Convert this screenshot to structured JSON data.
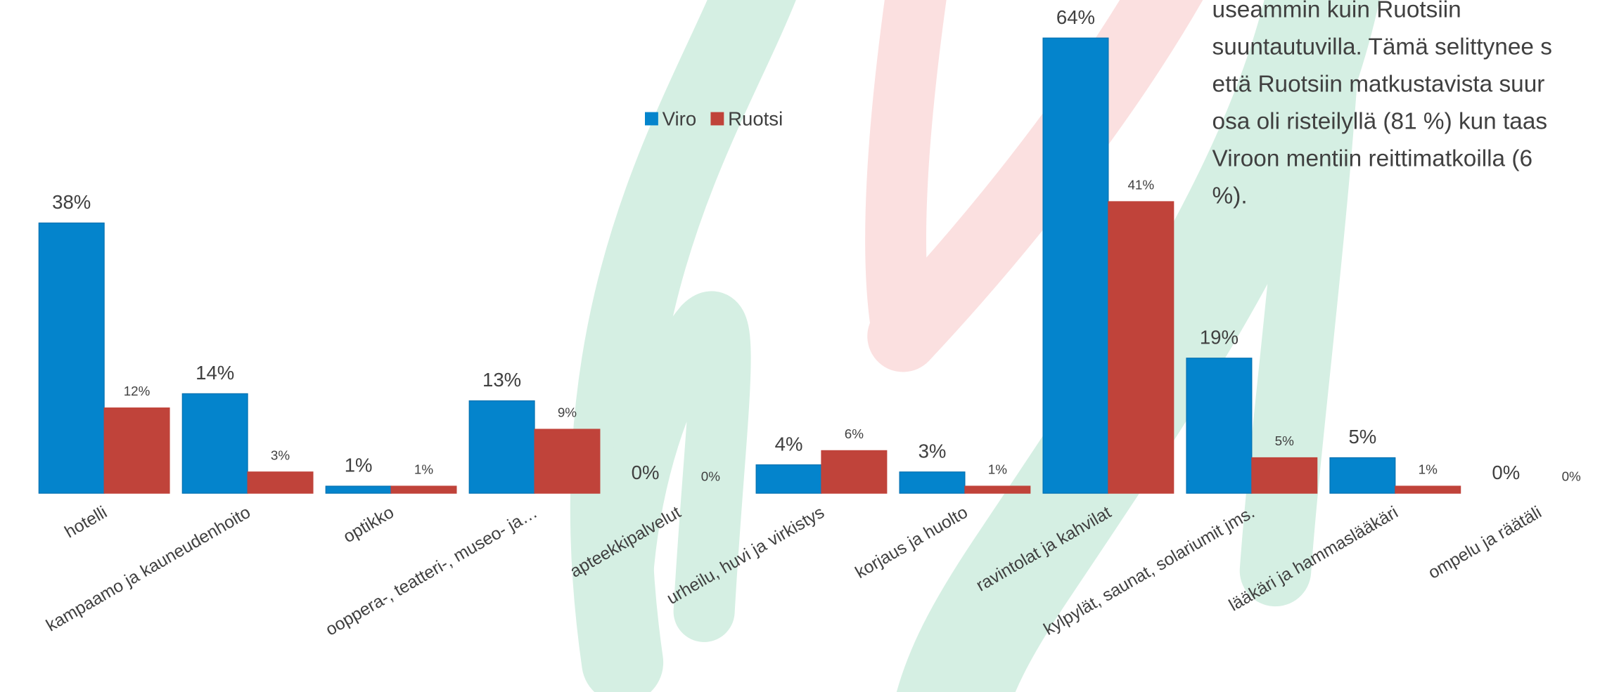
{
  "chart_data": {
    "type": "bar",
    "categories": [
      "hotelli",
      "kampaamo ja kauneudenhoito",
      "optikko",
      "ooppera-, teatteri-, museo- ja…",
      "apteekkipalvelut",
      "urheilu, huvi ja virkistys",
      "korjaus ja huolto",
      "ravintolat ja kahvilat",
      "kylpylät, saunat, solariumit jms.",
      "lääkäri ja hammaslääkäri",
      "ompelu ja räätäli"
    ],
    "series": [
      {
        "name": "Viro",
        "color": "#0484cc",
        "values": [
          38,
          14,
          1,
          13,
          0,
          4,
          3,
          64,
          19,
          5,
          0
        ],
        "value_labels": [
          "38%",
          "14%",
          "1%",
          "13%",
          "0%",
          "4%",
          "3%",
          "64%",
          "19%",
          "5%",
          "0%"
        ]
      },
      {
        "name": "Ruotsi",
        "color": "#c0433a",
        "values": [
          12,
          3,
          1,
          9,
          0,
          6,
          1,
          41,
          5,
          1,
          0
        ],
        "value_labels": [
          "12%",
          "3%",
          "1%",
          "9%",
          "0%",
          "6%",
          "1%",
          "41%",
          "5%",
          "1%",
          "0%"
        ]
      }
    ],
    "legend": "top",
    "annotations": [
      "useammin kuin Ruotsiin",
      "suuntautuvilla. Tämä selittynee s",
      "että Ruotsiin matkustavista suur",
      "osa oli risteilyllä (81 %) kun taas",
      "Viroon mentiin reittimatkoilla (6",
      "%)."
    ]
  }
}
